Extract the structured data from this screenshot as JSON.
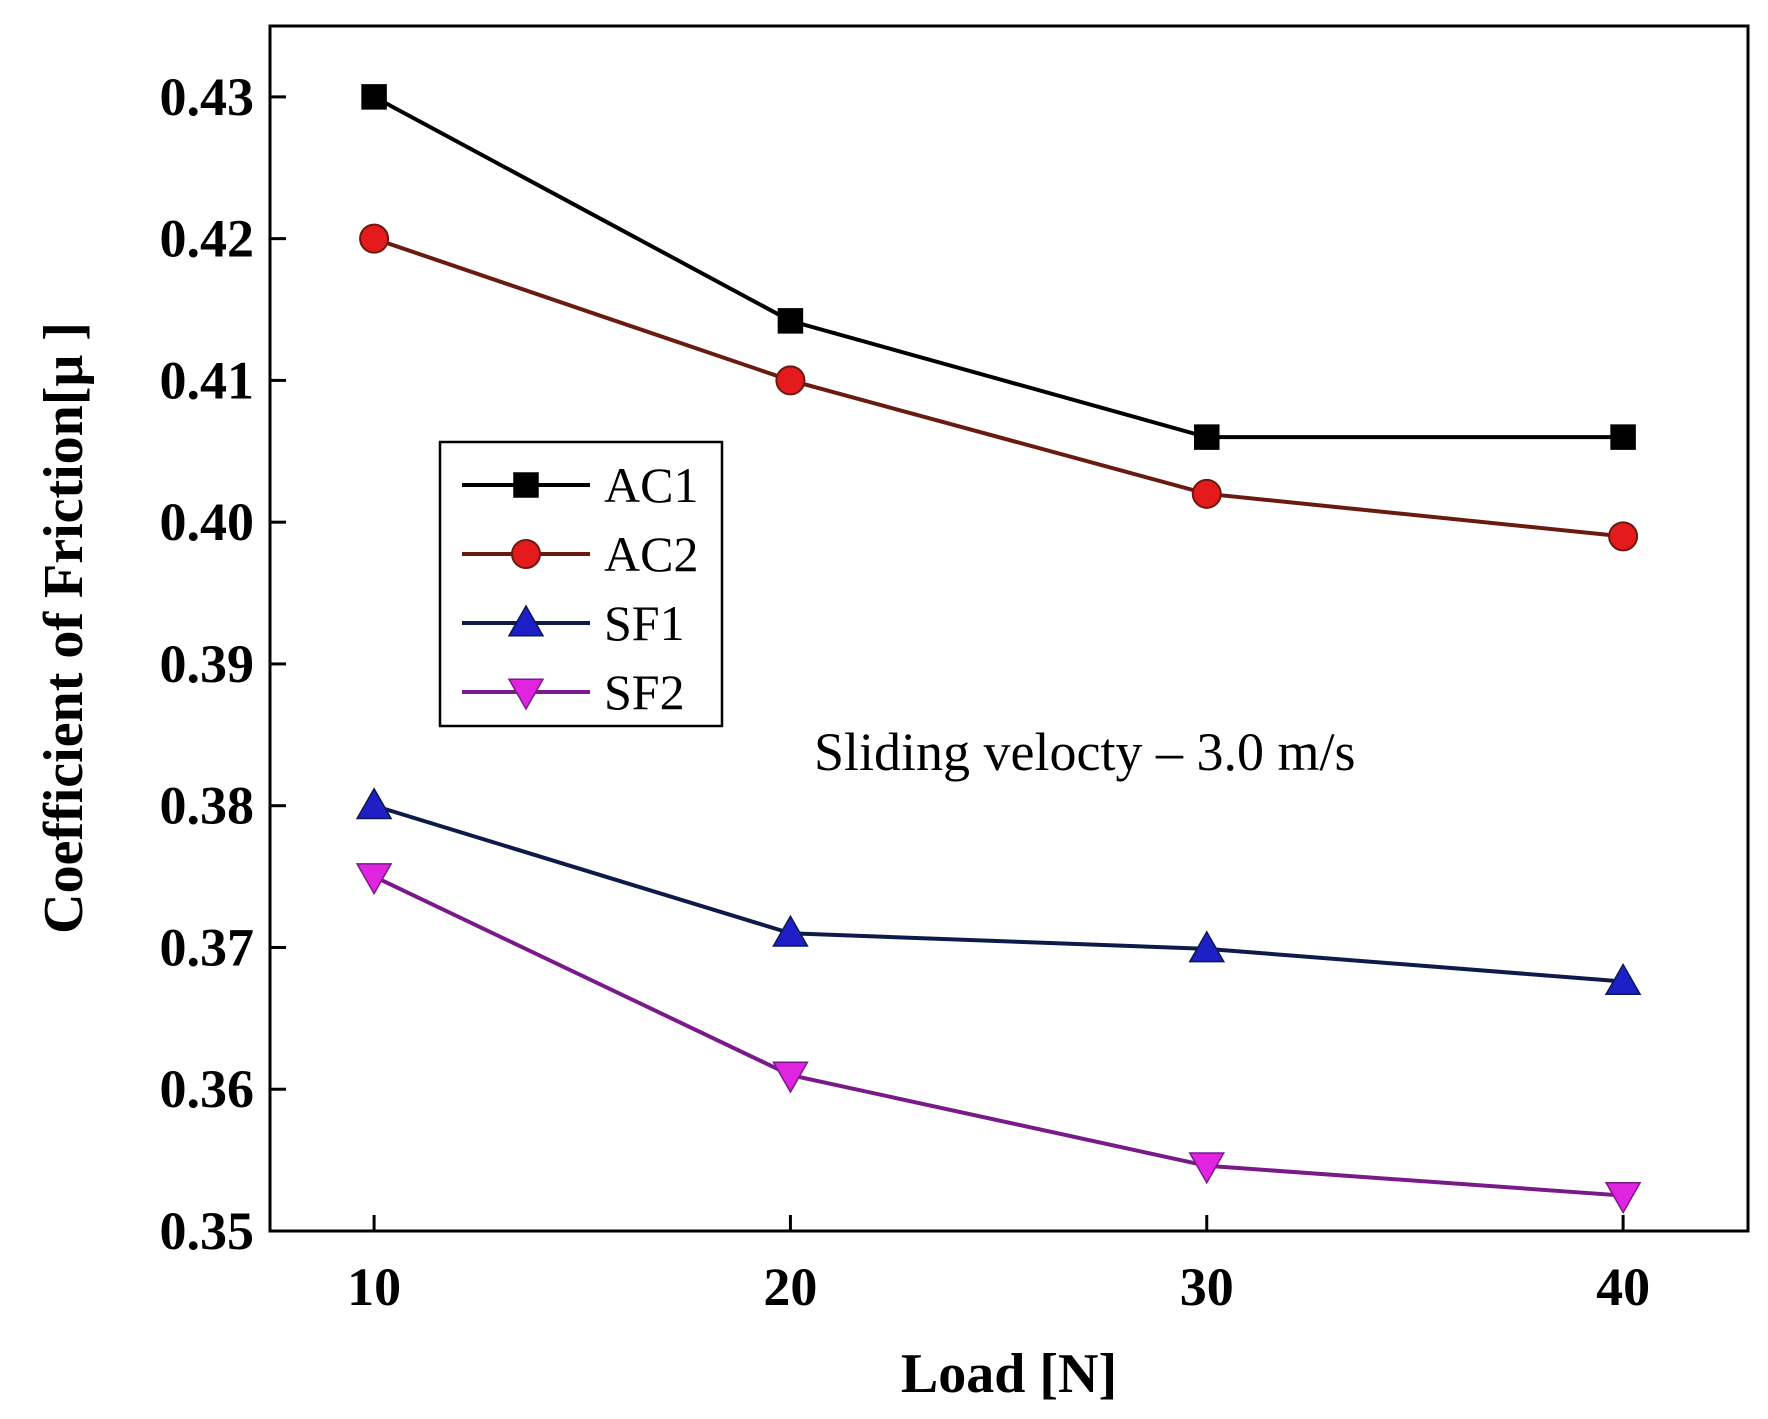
{
  "chart_data": {
    "type": "line",
    "title": "",
    "xlabel": "Load [N]",
    "ylabel": "Coefficient of Friction[μ ]",
    "x": [
      10,
      20,
      30,
      40
    ],
    "xlim": [
      7.5,
      43
    ],
    "ylim": [
      0.35,
      0.435
    ],
    "xticks": [
      "10",
      "20",
      "30",
      "40"
    ],
    "yticks": [
      "0.35",
      "0.36",
      "0.37",
      "0.38",
      "0.39",
      "0.40",
      "0.41",
      "0.42",
      "0.43"
    ],
    "series": [
      {
        "name": "AC1",
        "values": [
          0.43,
          0.4142,
          0.406,
          0.406
        ],
        "color": "#000000",
        "marker": "square",
        "marker_fill": "#000000"
      },
      {
        "name": "AC2",
        "values": [
          0.42,
          0.41,
          0.402,
          0.399
        ],
        "color": "#6b1a10",
        "marker": "circle",
        "marker_fill": "#e41a1c"
      },
      {
        "name": "SF1",
        "values": [
          0.38,
          0.371,
          0.3699,
          0.3676
        ],
        "color": "#0d1a4a",
        "marker": "triangle-up",
        "marker_fill": "#1f1fc8"
      },
      {
        "name": "SF2",
        "values": [
          0.375,
          0.361,
          0.3546,
          0.3525
        ],
        "color": "#7a1a8a",
        "marker": "triangle-down",
        "marker_fill": "#e024e0"
      }
    ],
    "annotation": "Sliding velocty – 3.0 m/s",
    "legend_position": "center-left",
    "grid": false
  }
}
